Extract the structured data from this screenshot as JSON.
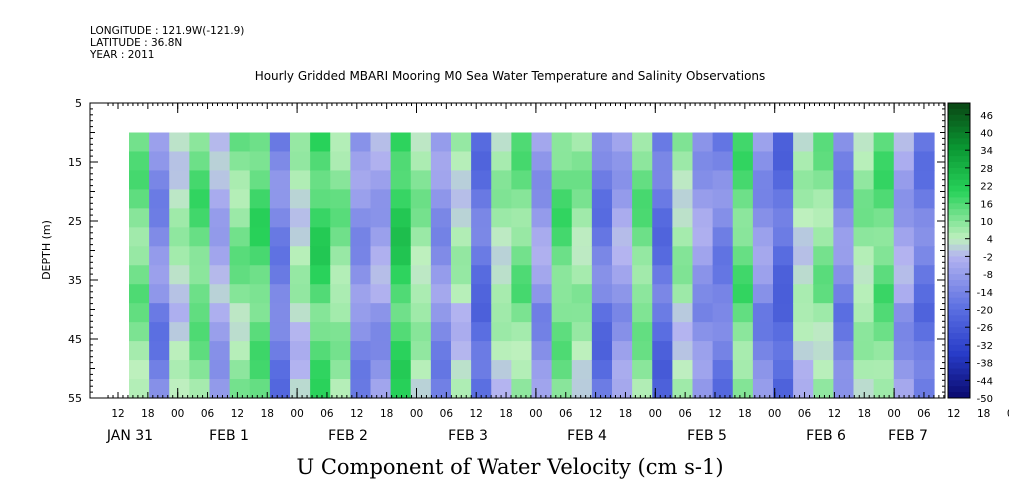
{
  "header": {
    "longitude": "LONGITUDE : 121.9W(-121.9)",
    "latitude": "LATITUDE : 36.8N",
    "year": "YEAR : 2011"
  },
  "chart_data": {
    "type": "heatmap",
    "title": "Hourly Gridded MBARI Mooring M0 Sea Water Temperature and Salinity Observations",
    "xlabel": "U Component of Water Velocity (cm s-1)",
    "ylabel": "DEPTH (m)",
    "y_axis": {
      "range": [
        5,
        55
      ],
      "inverted": true,
      "ticks": [
        5,
        15,
        25,
        35,
        45,
        55
      ]
    },
    "x_axis": {
      "hour_ticks": [
        "12",
        "18",
        "00",
        "06",
        "12",
        "18",
        "00",
        "06",
        "12",
        "18",
        "00",
        "06",
        "12",
        "18",
        "00",
        "06",
        "12",
        "18",
        "00",
        "06",
        "12",
        "18",
        "00",
        "06",
        "12",
        "18",
        "00",
        "06",
        "12",
        "18",
        "00",
        "06"
      ],
      "day_labels": [
        "JAN 31",
        "FEB  1",
        "FEB  2",
        "FEB  3",
        "FEB  4",
        "FEB  5",
        "FEB  6",
        "FEB  7"
      ]
    },
    "data_depth_range": [
      10,
      55
    ],
    "colorbar": {
      "range": [
        -50,
        50
      ],
      "tick_labels": [
        "46",
        "40",
        "34",
        "28",
        "22",
        "16",
        "10",
        "4",
        "-2",
        "-8",
        "-14",
        "-20",
        "-26",
        "-32",
        "-38",
        "-44",
        "-50"
      ]
    },
    "dominant_values": {
      "comment_free_pattern": "alternating bands of positive (green) and negative (blue) velocity",
      "column_values": [
        12,
        -12,
        4,
        14,
        -4,
        10,
        16,
        -14,
        4,
        18,
        10,
        -10,
        -6,
        20,
        8,
        -10,
        4,
        -18,
        6,
        12,
        -8,
        14,
        8,
        -16,
        -6,
        12,
        -18,
        6,
        -8,
        -14,
        14,
        -10,
        -20,
        4,
        10,
        -12,
        8,
        14,
        -6,
        -16
      ]
    }
  }
}
